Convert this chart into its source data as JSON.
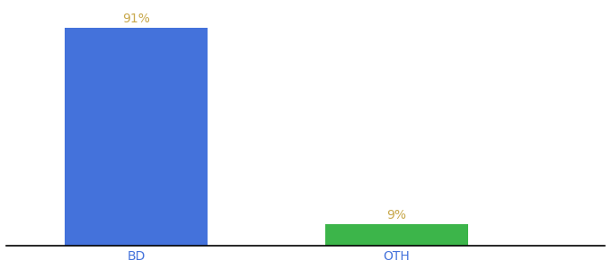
{
  "categories": [
    "BD",
    "OTH"
  ],
  "values": [
    91,
    9
  ],
  "bar_colors": [
    "#4472db",
    "#3cb54a"
  ],
  "value_labels": [
    "91%",
    "9%"
  ],
  "value_label_color": "#c8a84b",
  "xlabel_color": "#4472db",
  "background_color": "#ffffff",
  "ylim": [
    0,
    100
  ],
  "x_positions": [
    1,
    2
  ],
  "bar_width": 0.55,
  "label_fontsize": 10,
  "tick_fontsize": 10,
  "spine_color": "#000000",
  "xlim": [
    0.5,
    2.8
  ]
}
